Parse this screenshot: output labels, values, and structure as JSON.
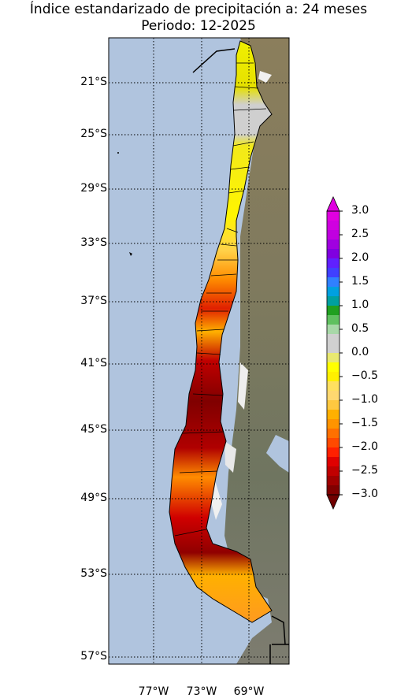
{
  "title_line1": "Índice estandarizado de precipitación a: 24 meses",
  "title_line2": "Periodo: 12-2025",
  "lat_labels": [
    "21°S",
    "25°S",
    "29°S",
    "33°S",
    "37°S",
    "41°S",
    "45°S",
    "49°S",
    "53°S",
    "57°S"
  ],
  "lon_labels": [
    "77°W",
    "73°W",
    "69°W"
  ],
  "colorbar": {
    "ticks": [
      "3.0",
      "2.5",
      "2.0",
      "1.5",
      "1.0",
      "0.5",
      "0.0",
      "−0.5",
      "−1.0",
      "−1.5",
      "−2.0",
      "−2.5",
      "−3.0"
    ],
    "range": [
      -3.0,
      3.0
    ]
  },
  "colors": {
    "ocean": "#b0c4de",
    "land": "#8c8466",
    "snow": "#f2f2f2"
  }
}
